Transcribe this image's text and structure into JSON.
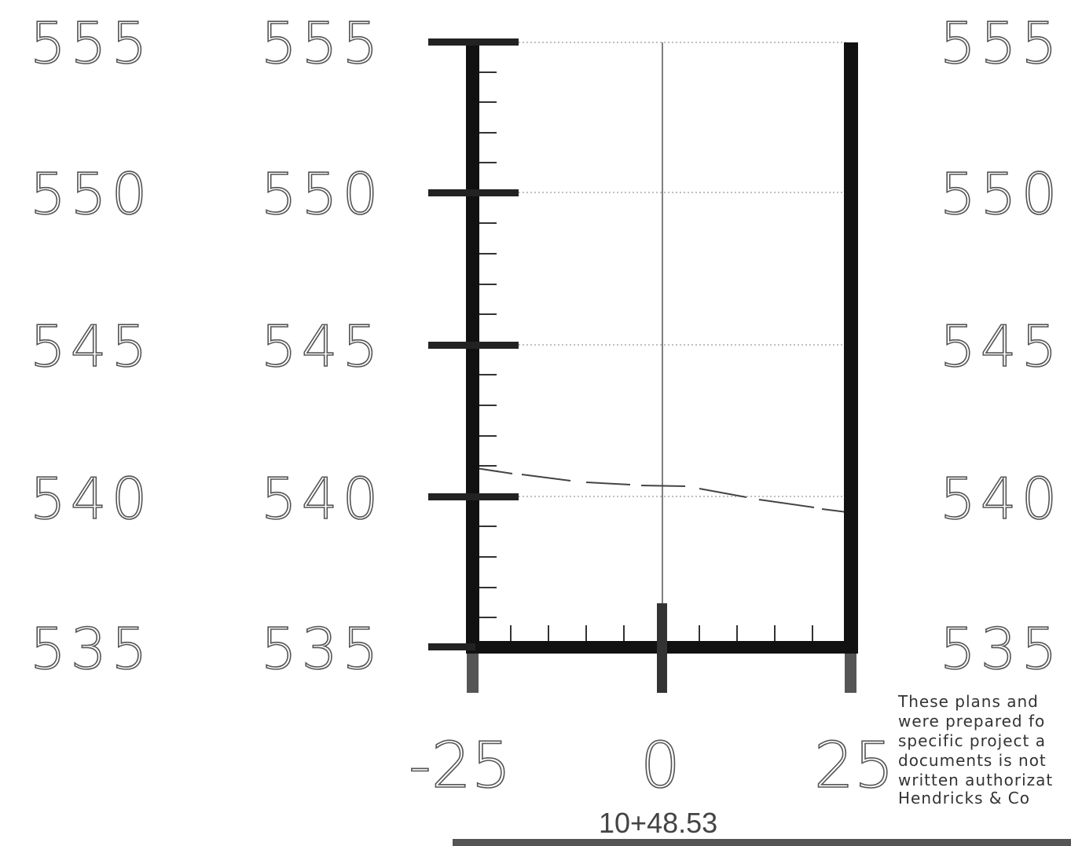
{
  "elevations": {
    "left_outer": [
      "555",
      "550",
      "545",
      "540",
      "535"
    ],
    "left_inner": [
      "555",
      "550",
      "545",
      "540",
      "535"
    ],
    "right": [
      "555",
      "550",
      "545",
      "540",
      "535"
    ]
  },
  "offsets": [
    "-25",
    "0",
    "25"
  ],
  "station": "10+48.53",
  "disclaimer": {
    "lines": [
      "These plans and",
      "were prepared fo",
      "specific project a",
      "documents is not",
      "written authorizat",
      "Hendricks & Co"
    ]
  },
  "colors": {
    "frame": "#111111",
    "gridline": "#aaaaaa",
    "label_stroke": "#555555"
  }
}
